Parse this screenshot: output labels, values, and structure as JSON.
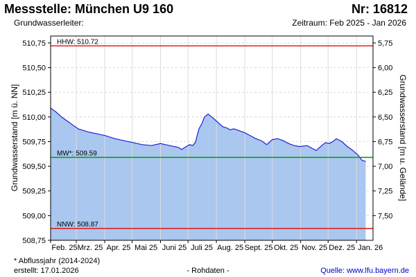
{
  "header": {
    "title": "Messstelle: München U9 160",
    "number": "Nr: 16812",
    "subtitle": "Grundwasserleiter:",
    "period": "Zeitraum: Feb 2025 - Jan 2026"
  },
  "footer": {
    "note": "* Abflussjahr (2014-2024)",
    "created": "erstellt:  17.01.2026",
    "rawdata": "- Rohdaten -",
    "source": "Quelle:  www.lfu.bayern.de"
  },
  "colors": {
    "fill": "#a9c7ef",
    "line": "#1f1fd6",
    "hhw": "#e02020",
    "mw": "#139a13",
    "nnw": "#e02020",
    "grid": "#d8d8d8"
  },
  "chart_data": {
    "type": "area",
    "xlabel": "",
    "ylabel_left": "Grundwasserstand [m ü. NN]",
    "ylabel_right": "Grundwasserstand [m u. Gelände]",
    "ylim": [
      508.75,
      510.82
    ],
    "yticks_left": [
      "510,75",
      "510,50",
      "510,25",
      "510,00",
      "509,75",
      "509,50",
      "509,25",
      "509,00",
      "508,75"
    ],
    "yticks_left_values": [
      510.75,
      510.5,
      510.25,
      510.0,
      509.75,
      509.5,
      509.25,
      509.0,
      508.75
    ],
    "yticks_right": [
      "5,75",
      "6,00",
      "6,25",
      "6,50",
      "6,75",
      "7,00",
      "7,25",
      "7,50"
    ],
    "yticks_right_values": [
      5.75,
      6.0,
      6.25,
      6.5,
      6.75,
      7.0,
      7.25,
      7.5
    ],
    "right_axis_offset": 516.5,
    "x_range": [
      0,
      352
    ],
    "xticks": [
      "Feb. 25",
      "Mrz. 25",
      "Apr. 25",
      "Mai 25",
      "Juni 25",
      "Juli 25",
      "Aug. 25",
      "Sept. 25",
      "Okt. 25",
      "Nov. 25",
      "Dez. 25",
      "Jan. 26"
    ],
    "xticks_days": [
      0,
      28,
      59,
      89,
      120,
      150,
      181,
      212,
      242,
      273,
      303,
      334
    ],
    "reference_lines": [
      {
        "label": "HHW: 510.72",
        "value": 510.72,
        "color": "#e02020"
      },
      {
        "label": "MW*: 509.59",
        "value": 509.59,
        "color": "#139a13"
      },
      {
        "label": "NNW: 508.87",
        "value": 508.87,
        "color": "#e02020"
      }
    ],
    "series": [
      {
        "x": [
          0,
          6,
          12,
          18,
          24,
          30,
          40,
          50,
          60,
          70,
          80,
          90,
          100,
          110,
          120,
          130,
          140,
          143,
          148,
          152,
          155,
          158,
          162,
          165,
          168,
          172,
          176,
          182,
          188,
          192,
          196,
          200,
          206,
          212,
          218,
          224,
          230,
          236,
          242,
          248,
          254,
          260,
          266,
          272,
          280,
          286,
          290,
          296,
          300,
          304,
          308,
          312,
          318,
          324,
          330,
          336,
          340,
          344
        ],
        "y": [
          510.09,
          510.05,
          510.0,
          509.96,
          509.92,
          509.88,
          509.85,
          509.83,
          509.81,
          509.78,
          509.76,
          509.74,
          509.72,
          509.71,
          509.73,
          509.71,
          509.69,
          509.67,
          509.7,
          509.72,
          509.71,
          509.74,
          509.88,
          509.93,
          510.0,
          510.03,
          510.0,
          509.95,
          509.9,
          509.89,
          509.87,
          509.88,
          509.86,
          509.84,
          509.81,
          509.78,
          509.76,
          509.72,
          509.77,
          509.78,
          509.76,
          509.73,
          509.71,
          509.7,
          509.71,
          509.68,
          509.66,
          509.71,
          509.74,
          509.73,
          509.75,
          509.78,
          509.75,
          509.7,
          509.66,
          509.61,
          509.56,
          509.55
        ]
      }
    ]
  }
}
